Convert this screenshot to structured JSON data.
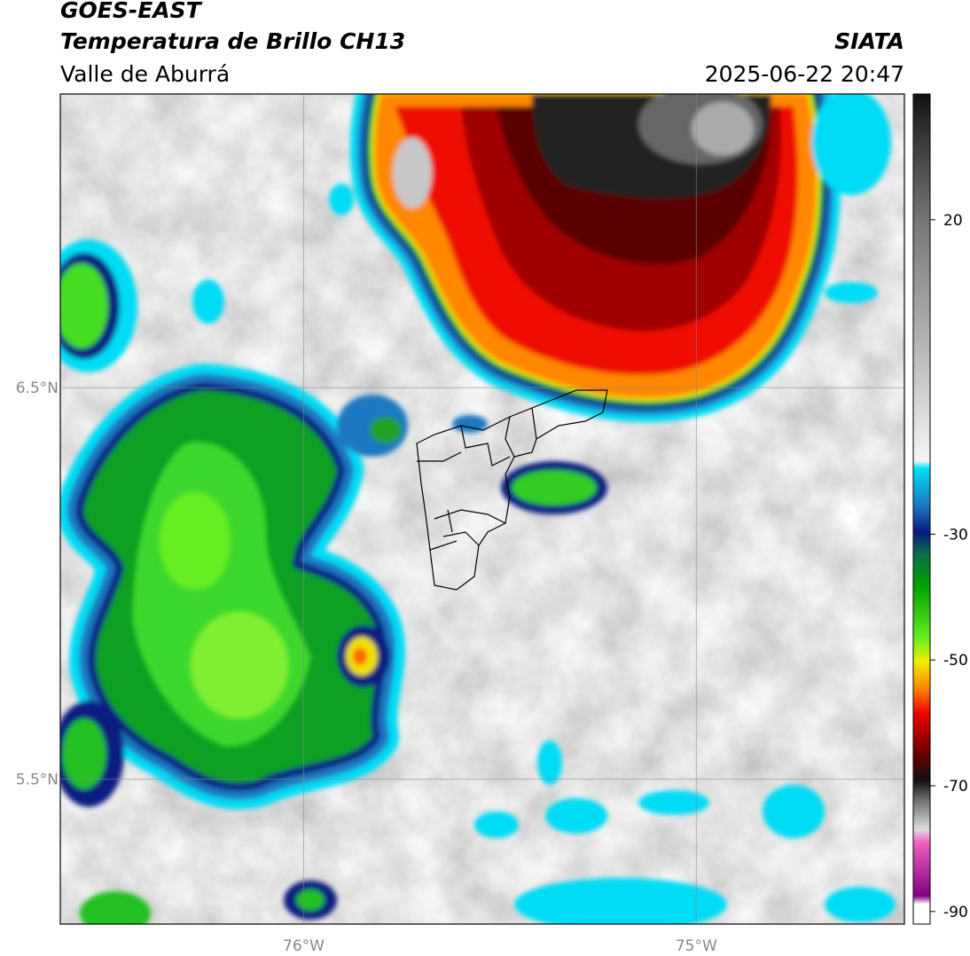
{
  "header": {
    "title": "GOES-EAST",
    "subtitle": "Temperatura de Brillo CH13",
    "region": "Valle de Aburrá",
    "source": "SIATA",
    "timestamp": "2025-06-22 20:47"
  },
  "map": {
    "xlim": [
      -76.62,
      -74.47
    ],
    "ylim": [
      5.13,
      7.25
    ],
    "xticks": [
      {
        "value": -76,
        "label": "76°W"
      },
      {
        "value": -75,
        "label": "75°W"
      }
    ],
    "yticks": [
      {
        "value": 6.5,
        "label": "6.5°N"
      },
      {
        "value": 5.5,
        "label": "5.5°N"
      }
    ],
    "grid": true
  },
  "colorbar": {
    "lim": [
      -92,
      40
    ],
    "ticks": [
      20,
      -30,
      -50,
      -70,
      -90
    ]
  }
}
